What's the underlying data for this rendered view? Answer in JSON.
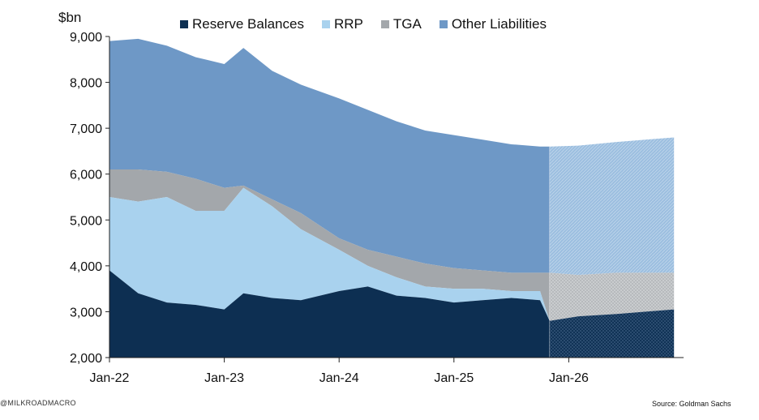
{
  "chart_data": {
    "type": "area",
    "stacked": true,
    "unit_label": "$bn",
    "title": "",
    "xlabel": "",
    "ylabel": "",
    "ylim": [
      2000,
      9000
    ],
    "yticks": [
      "2,000",
      "3,000",
      "4,000",
      "5,000",
      "6,000",
      "7,000",
      "8,000",
      "9,000"
    ],
    "xlim": [
      "2022-01",
      "2026-12"
    ],
    "xticks": [
      "Jan-22",
      "Jan-23",
      "Jan-24",
      "Jan-25",
      "Jan-26"
    ],
    "grid": false,
    "legend_position": "top",
    "forecast_start": "2025-11",
    "x": [
      "2022-01",
      "2022-04",
      "2022-07",
      "2022-10",
      "2023-01",
      "2023-03",
      "2023-06",
      "2023-09",
      "2024-01",
      "2024-04",
      "2024-07",
      "2024-10",
      "2025-01",
      "2025-04",
      "2025-07",
      "2025-10",
      "2025-11",
      "2026-02",
      "2026-06",
      "2026-09",
      "2026-12"
    ],
    "series": [
      {
        "name": "Reserve Balances",
        "color": "#0d2f52",
        "values": [
          3900,
          3400,
          3200,
          3150,
          3050,
          3400,
          3300,
          3250,
          3450,
          3550,
          3350,
          3300,
          3200,
          3250,
          3300,
          3250,
          2800,
          2900,
          2950,
          3000,
          3050
        ]
      },
      {
        "name": "RRP",
        "color": "#a9d2ee",
        "values": [
          5500,
          5400,
          5500,
          5200,
          5200,
          5700,
          5300,
          4800,
          4350,
          4000,
          3750,
          3550,
          3500,
          3500,
          3450,
          3450,
          2800,
          2900,
          2950,
          3000,
          3050
        ]
      },
      {
        "name": "TGA",
        "color": "#a3a7ab",
        "values": [
          6100,
          6100,
          6050,
          5900,
          5700,
          5750,
          5450,
          5150,
          4600,
          4350,
          4200,
          4050,
          3950,
          3900,
          3850,
          3850,
          3850,
          3800,
          3850,
          3850,
          3850
        ]
      },
      {
        "name": "Other Liabilities",
        "color": "#6e98c6",
        "values": [
          8900,
          8950,
          8800,
          8550,
          8400,
          8750,
          8250,
          7950,
          7650,
          7400,
          7150,
          6950,
          6850,
          6750,
          6650,
          6600,
          6600,
          6620,
          6700,
          6750,
          6800
        ]
      }
    ]
  },
  "footer": {
    "watermark": "@MILKROADMACRO",
    "source": "Source: Goldman Sachs"
  }
}
